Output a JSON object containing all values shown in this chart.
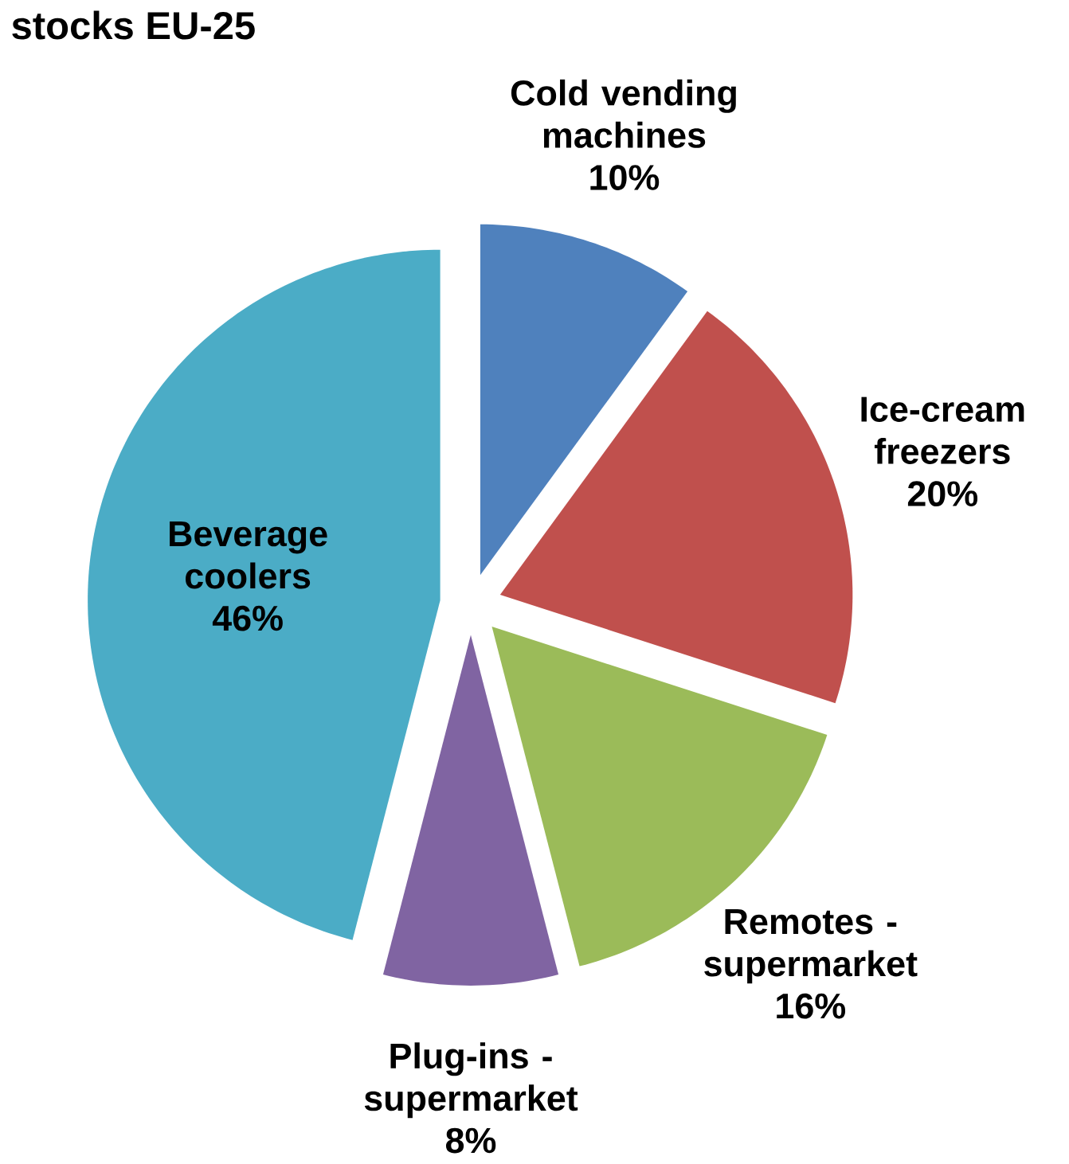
{
  "chart_data": {
    "type": "pie",
    "title": "stocks EU-25",
    "categories": [
      "Cold vending machines",
      "Ice-cream freezers",
      "Remotes - supermarket",
      "Plug-ins - supermarket",
      "Beverage coolers"
    ],
    "values": [
      10,
      20,
      16,
      8,
      46
    ],
    "value_labels": [
      "10%",
      "20%",
      "16%",
      "8%",
      "46%"
    ],
    "colors": [
      "#4f81bd",
      "#c0504d",
      "#9bbb59",
      "#8064a2",
      "#4bacc6"
    ]
  }
}
